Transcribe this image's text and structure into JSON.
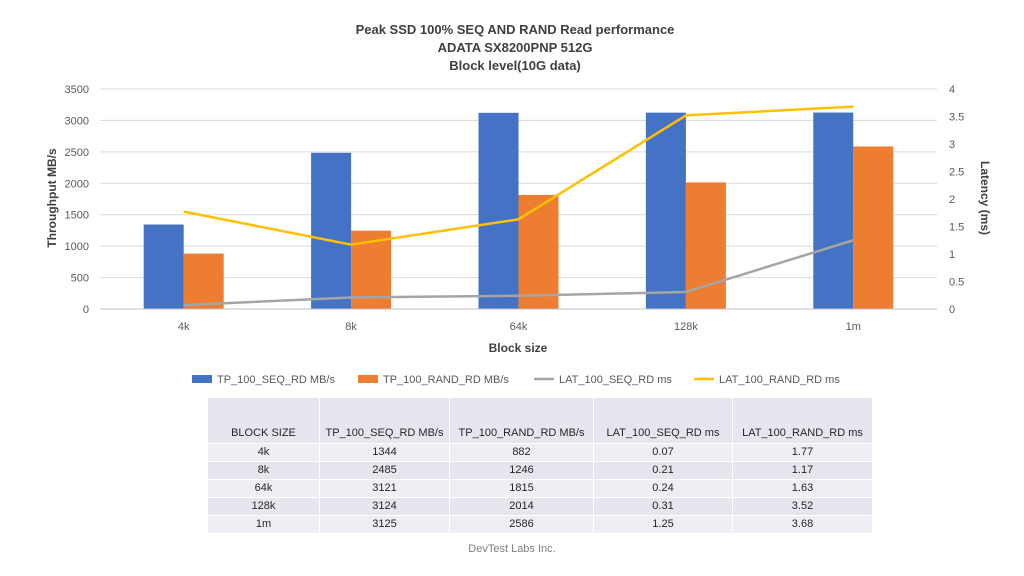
{
  "chart_data": {
    "type": "bar",
    "title": [
      "Peak SSD 100% SEQ AND RAND Read performance",
      "ADATA SX8200PNP 512G",
      "Block level(10G data)"
    ],
    "xlabel": "Block size",
    "ylabel": "Throughput MB/s",
    "y2label": "Latency (ms)",
    "categories": [
      "4k",
      "8k",
      "64k",
      "128k",
      "1m"
    ],
    "ylim": [
      0,
      3500
    ],
    "yticks": [
      0,
      500,
      1000,
      1500,
      2000,
      2500,
      3000,
      3500
    ],
    "y2lim": [
      0,
      4
    ],
    "y2ticks": [
      "0",
      "0.5",
      "1",
      "1.5",
      "2",
      "2.5",
      "3",
      "3.5",
      "4"
    ],
    "grid": true,
    "legend_position": "bottom",
    "series": [
      {
        "name": "TP_100_SEQ_RD MB/s",
        "kind": "bar",
        "axis": "left",
        "color": "#4472c4",
        "values": [
          1344,
          2485,
          3121,
          3124,
          3125
        ]
      },
      {
        "name": "TP_100_RAND_RD MB/s",
        "kind": "bar",
        "axis": "left",
        "color": "#ed7d31",
        "values": [
          882,
          1246,
          1815,
          2014,
          2586
        ]
      },
      {
        "name": "LAT_100_SEQ_RD ms",
        "kind": "line",
        "axis": "right",
        "color": "#a5a5a5",
        "values": [
          0.07,
          0.21,
          0.24,
          0.31,
          1.25
        ]
      },
      {
        "name": "LAT_100_RAND_RD ms",
        "kind": "line",
        "axis": "right",
        "color": "#ffc000",
        "values": [
          1.77,
          1.17,
          1.63,
          3.52,
          3.68
        ]
      }
    ]
  },
  "table": {
    "headers": [
      "BLOCK SIZE",
      "TP_100_SEQ_RD MB/s",
      "TP_100_RAND_RD MB/s",
      "LAT_100_SEQ_RD ms",
      "LAT_100_RAND_RD ms"
    ],
    "rows": [
      [
        "4k",
        "1344",
        "882",
        "0.07",
        "1.77"
      ],
      [
        "8k",
        "2485",
        "1246",
        "0.21",
        "1.17"
      ],
      [
        "64k",
        "3121",
        "1815",
        "0.24",
        "1.63"
      ],
      [
        "128k",
        "3124",
        "2014",
        "0.31",
        "3.52"
      ],
      [
        "1m",
        "3125",
        "2586",
        "1.25",
        "3.68"
      ]
    ]
  },
  "footer": "DevTest Labs Inc."
}
